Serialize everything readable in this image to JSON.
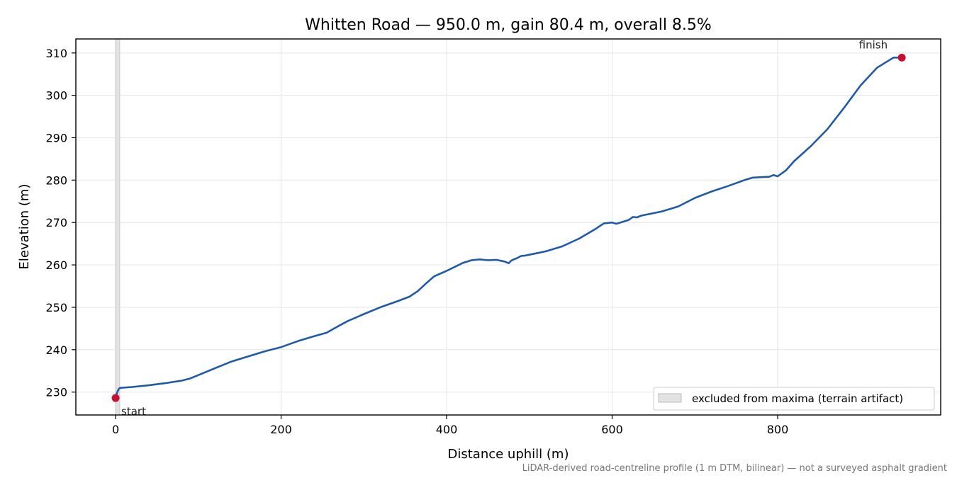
{
  "chart_data": {
    "type": "line",
    "title": "Whitten Road — 950.0 m, gain 80.4 m, overall 8.5%",
    "xlabel": "Distance uphill (m)",
    "ylabel": "Elevation (m)",
    "xlim": [
      -48,
      997
    ],
    "ylim": [
      224.6,
      313.3
    ],
    "x_ticks": [
      0,
      200,
      400,
      600,
      800
    ],
    "y_ticks": [
      230,
      240,
      250,
      260,
      270,
      280,
      290,
      300,
      310
    ],
    "grid": true,
    "line_color": "#1f5aa8",
    "series": [
      {
        "x": [
          0,
          2,
          4,
          6,
          20,
          40,
          60,
          80,
          90,
          100,
          120,
          140,
          160,
          180,
          200,
          220,
          240,
          255,
          265,
          280,
          300,
          320,
          340,
          355,
          365,
          375,
          385,
          400,
          420,
          430,
          440,
          450,
          460,
          470,
          475,
          478,
          480,
          485,
          490,
          495,
          500,
          520,
          540,
          560,
          580,
          590,
          600,
          605,
          610,
          620,
          625,
          630,
          635,
          640,
          660,
          680,
          700,
          720,
          740,
          760,
          770,
          780,
          790,
          795,
          800,
          810,
          820,
          840,
          860,
          880,
          900,
          920,
          940,
          950
        ],
        "y": [
          228.6,
          230.0,
          230.8,
          231.0,
          231.2,
          231.6,
          232.1,
          232.7,
          233.2,
          234.0,
          235.6,
          237.2,
          238.4,
          239.6,
          240.6,
          242.0,
          243.2,
          244.0,
          245.1,
          246.7,
          248.4,
          250.0,
          251.4,
          252.5,
          253.8,
          255.6,
          257.3,
          258.6,
          260.5,
          261.1,
          261.3,
          261.1,
          261.2,
          260.8,
          260.4,
          261.0,
          261.2,
          261.6,
          262.1,
          262.2,
          262.4,
          263.2,
          264.4,
          266.2,
          268.5,
          269.8,
          270.0,
          269.7,
          270.0,
          270.6,
          271.3,
          271.2,
          271.6,
          271.8,
          272.6,
          273.8,
          275.8,
          277.3,
          278.6,
          280.0,
          280.6,
          280.7,
          280.8,
          281.2,
          280.9,
          282.3,
          284.5,
          288.0,
          292.0,
          297.0,
          302.3,
          306.5,
          308.9,
          308.9
        ]
      }
    ],
    "markers": [
      {
        "label": "start",
        "x": 0,
        "y": 228.6
      },
      {
        "label": "finish",
        "x": 950,
        "y": 308.9
      }
    ],
    "excluded_band": {
      "x0": 0,
      "x1": 5
    },
    "legend": {
      "location": "lower-right",
      "label": "excluded from maxima (terrain artifact)"
    },
    "footnote": "LiDAR-derived road-centreline profile (1 m DTM, bilinear) — not a surveyed asphalt gradient",
    "colors": {
      "marker": "#c8102e",
      "band": "#e3e3e3",
      "grid": "#e6e6e6"
    }
  }
}
